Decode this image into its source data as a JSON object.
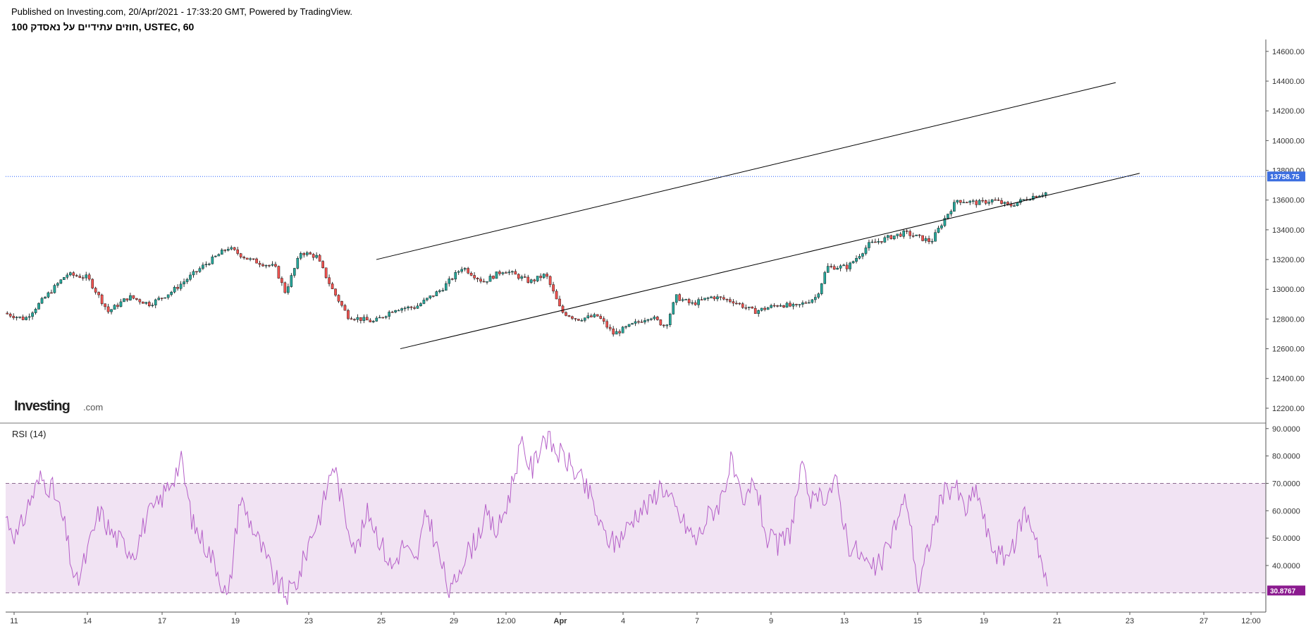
{
  "header": {
    "published": "Published on Investing.com, 20/Apr/2021 - 17:33:20 GMT, Powered by TradingView.",
    "symbol": "100 חוזים עתידיים על נאסדק, USTEC, 60"
  },
  "logo": {
    "main": "Investing",
    "sub": ".com"
  },
  "colors": {
    "up": "#26a69a",
    "down": "#ef5350",
    "wick": "#000000",
    "price_line": "#2962ff",
    "rsi_line": "#b55fc8",
    "rsi_band": "#f1e3f3",
    "rsi_badge": "#8b1a8f",
    "price_badge": "#3d6fe0",
    "axis": "#333333"
  },
  "chart_data": [
    {
      "type": "line",
      "subtype": "candlestick",
      "timeframe": "60",
      "y_axis_side": "right",
      "ylim": [
        12100,
        14680
      ],
      "y_ticks": [
        "14600.00",
        "14400.00",
        "14200.00",
        "14000.00",
        "13800.00",
        "13600.00",
        "13400.00",
        "13200.00",
        "13000.00",
        "12800.00",
        "12600.00",
        "12400.00",
        "12200.00"
      ],
      "x_ticks": [
        "11",
        "14",
        "17",
        "19",
        "23",
        "25",
        "29",
        "12:00",
        "Apr",
        "4",
        "7",
        "9",
        "13",
        "15",
        "19",
        "21",
        "23",
        "27",
        "12:00"
      ],
      "last_price": "13758.75",
      "close_path": [
        [
          0,
          12840
        ],
        [
          0.02,
          12800
        ],
        [
          0.04,
          12950
        ],
        [
          0.06,
          13100
        ],
        [
          0.08,
          13080
        ],
        [
          0.1,
          12850
        ],
        [
          0.12,
          12950
        ],
        [
          0.14,
          12900
        ],
        [
          0.16,
          12980
        ],
        [
          0.19,
          13150
        ],
        [
          0.215,
          13280
        ],
        [
          0.235,
          13200
        ],
        [
          0.26,
          13150
        ],
        [
          0.27,
          12980
        ],
        [
          0.285,
          13250
        ],
        [
          0.3,
          13220
        ],
        [
          0.315,
          13000
        ],
        [
          0.33,
          12820
        ],
        [
          0.355,
          12780
        ],
        [
          0.375,
          12870
        ],
        [
          0.395,
          12880
        ],
        [
          0.42,
          13000
        ],
        [
          0.44,
          13150
        ],
        [
          0.46,
          13050
        ],
        [
          0.48,
          13130
        ],
        [
          0.505,
          13050
        ],
        [
          0.52,
          13100
        ],
        [
          0.535,
          12850
        ],
        [
          0.55,
          12800
        ],
        [
          0.57,
          12820
        ],
        [
          0.585,
          12700
        ],
        [
          0.6,
          12750
        ],
        [
          0.62,
          12820
        ],
        [
          0.635,
          12750
        ],
        [
          0.645,
          12950
        ],
        [
          0.66,
          12900
        ],
        [
          0.68,
          12950
        ],
        [
          0.7,
          12920
        ],
        [
          0.72,
          12850
        ],
        [
          0.745,
          12900
        ],
        [
          0.76,
          12880
        ],
        [
          0.78,
          12950
        ],
        [
          0.79,
          13150
        ],
        [
          0.81,
          13150
        ],
        [
          0.83,
          13300
        ],
        [
          0.85,
          13350
        ],
        [
          0.865,
          13380
        ],
        [
          0.89,
          13320
        ],
        [
          0.905,
          13500
        ],
        [
          0.915,
          13600
        ],
        [
          0.935,
          13580
        ],
        [
          0.95,
          13600
        ],
        [
          0.965,
          13560
        ],
        [
          0.985,
          13620
        ],
        [
          1.0,
          13650
        ]
      ],
      "channel": {
        "upper": {
          "from": [
            "25",
            13200
          ],
          "to": [
            "23",
            14390
          ]
        },
        "lower": {
          "from": [
            "25",
            12600
          ],
          "to": [
            "23",
            13780
          ]
        }
      }
    },
    {
      "type": "line",
      "title": "RSI (14)",
      "period": 14,
      "ylim": [
        23,
        92
      ],
      "y_ticks": [
        "90.0000",
        "80.0000",
        "70.0000",
        "60.0000",
        "50.0000",
        "40.0000"
      ],
      "overbought": 70,
      "oversold": 30,
      "last_value": "30.8767",
      "values": [
        58,
        50,
        63,
        72,
        68,
        55,
        32,
        45,
        60,
        52,
        48,
        45,
        57,
        62,
        70,
        78,
        55,
        48,
        40,
        27,
        65,
        55,
        45,
        35,
        29,
        35,
        50,
        60,
        78,
        58,
        46,
        60,
        49,
        39,
        48,
        40,
        60,
        44,
        29,
        42,
        48,
        58,
        52,
        65,
        84,
        75,
        88,
        82,
        78,
        72,
        65,
        52,
        48,
        53,
        60,
        62,
        70,
        62,
        55,
        49,
        58,
        63,
        78,
        60,
        72,
        50,
        47,
        52,
        75,
        62,
        66,
        70,
        48,
        44,
        38,
        42,
        55,
        65,
        31,
        50,
        65,
        70,
        60,
        68,
        49,
        43,
        45,
        60,
        52,
        31
      ]
    }
  ]
}
